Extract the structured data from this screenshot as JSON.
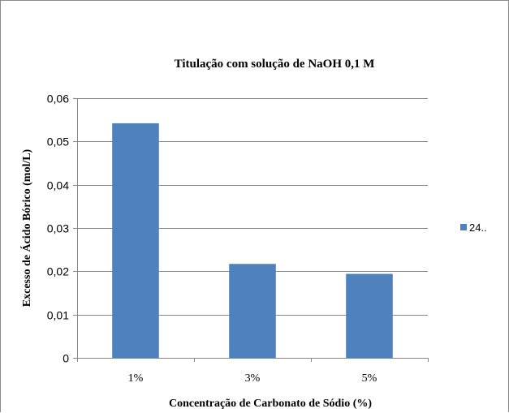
{
  "chart_data": {
    "type": "bar",
    "title": "Titulação com solução de NaOH 0,1 M",
    "xlabel": "Concentração de Carbonato de Sódio (%)",
    "ylabel": "Excesso de Ácido Bórico (mol/L)",
    "categories": [
      "1%",
      "3%",
      "5%"
    ],
    "series": [
      {
        "name": "24..",
        "values": [
          0.0542,
          0.0217,
          0.0194
        ],
        "color": "#4f81bd"
      }
    ],
    "ylim": [
      0,
      0.06
    ],
    "yticks": [
      0,
      0.01,
      0.02,
      0.03,
      0.04,
      0.05,
      0.06
    ],
    "ytick_labels": [
      "0",
      "0,01",
      "0,02",
      "0,03",
      "0,04",
      "0,05",
      "0,06"
    ],
    "grid": true,
    "legend_position": "right"
  },
  "colors": {
    "bar": "#4f81bd",
    "grid": "#868686",
    "axis": "#868686",
    "text": "#000000"
  }
}
